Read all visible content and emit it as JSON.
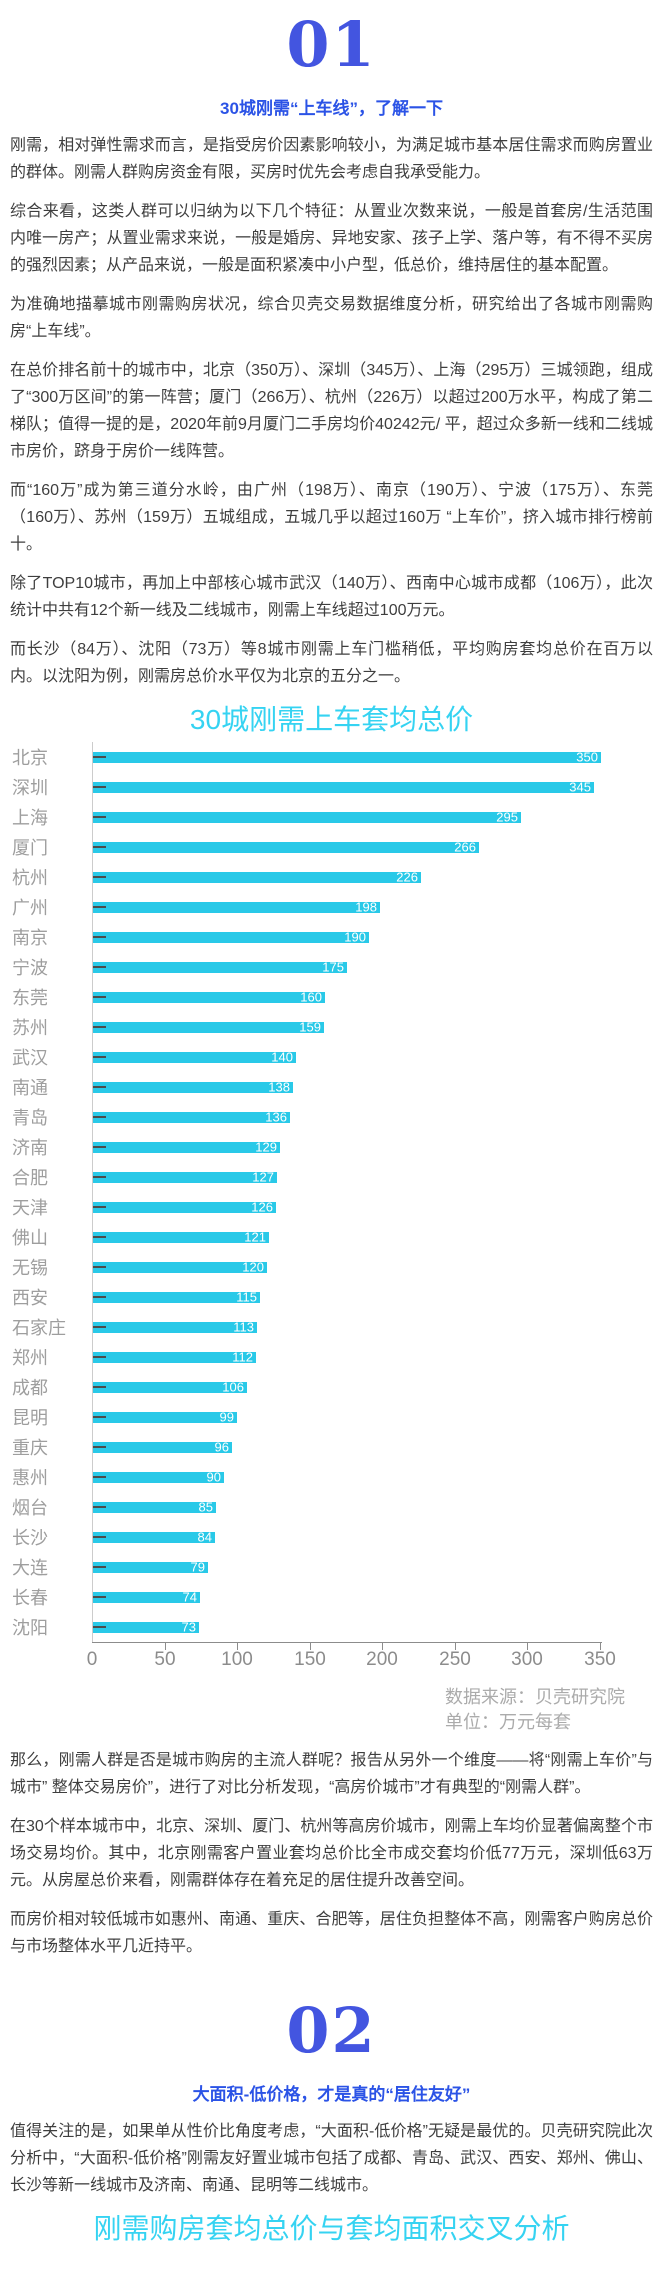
{
  "colors": {
    "section_number_blue": "#4355e0",
    "heading_blue": "#2b53e6",
    "cyan_title": "#35d3f2",
    "bar_cyan": "#29c9e8",
    "body_text": "#3e3e3e",
    "muted_gray": "#9e9e9e",
    "value_label_white": "#ffffff"
  },
  "section1": {
    "number": "01",
    "heading": "30城刚需“上车线”，了解一下",
    "paragraphs": [
      "刚需，相对弹性需求而言，是指受房价因素影响较小，为满足城市基本居住需求而购房置业的群体。刚需人群购房资金有限，买房时优先会考虑自我承受能力。",
      "综合来看，这类人群可以归纳为以下几个特征：从置业次数来说，一般是首套房/生活范围内唯一房产；从置业需求来说，一般是婚房、异地安家、孩子上学、落户等，有不得不买房的强烈因素；从产品来说，一般是面积紧凑中小户型，低总价，维持居住的基本配置。",
      "为准确地描摹城市刚需购房状况，综合贝壳交易数据维度分析，研究给出了各城市刚需购房“上车线”。",
      "在总价排名前十的城市中，北京（350万）、深圳（345万）、上海（295万）三城领跑，组成了“300万区间”的第一阵营；厦门（266万）、杭州（226万）以超过200万水平，构成了第二梯队；值得一提的是，2020年前9月厦门二手房均价40242元/ 平，超过众多新一线和二线城市房价，跻身于房价一线阵营。",
      "而“160万”成为第三道分水岭，由广州（198万）、南京（190万）、宁波（175万）、东莞（160万）、苏州（159万）五城组成，五城几乎以超过160万 “上车价”，挤入城市排行榜前十。",
      "除了TOP10城市，再加上中部核心城市武汉（140万）、西南中心城市成都（106万），此次统计中共有12个新一线及二线城市，刚需上车线超过100万元。",
      "而长沙（84万）、沈阳（73万）等8城市刚需上车门槛稍低，平均购房套均总价在百万以内。以沈阳为例，刚需房总价水平仅为北京的五分之一。"
    ]
  },
  "chart_data": {
    "type": "bar",
    "orientation": "horizontal",
    "title": "30城刚需上车套均总价",
    "categories": [
      "北京",
      "深圳",
      "上海",
      "厦门",
      "杭州",
      "广州",
      "南京",
      "宁波",
      "东莞",
      "苏州",
      "武汉",
      "南通",
      "青岛",
      "济南",
      "合肥",
      "天津",
      "佛山",
      "无锡",
      "西安",
      "石家庄",
      "郑州",
      "成都",
      "昆明",
      "重庆",
      "惠州",
      "烟台",
      "长沙",
      "大连",
      "长春",
      "沈阳"
    ],
    "values": [
      350,
      345,
      295,
      266,
      226,
      198,
      190,
      175,
      160,
      159,
      140,
      138,
      136,
      129,
      127,
      126,
      121,
      120,
      115,
      113,
      112,
      106,
      99,
      96,
      90,
      85,
      84,
      79,
      74,
      73
    ],
    "xlabel": "",
    "ylabel": "",
    "xlim": [
      0,
      350
    ],
    "x_ticks": [
      0,
      50,
      100,
      150,
      200,
      250,
      300,
      350
    ],
    "grid": false,
    "legend": "none",
    "value_labels": "inside-end-white",
    "bar_color": "#29c9e8",
    "source": "数据来源：贝壳研究院",
    "unit": "单位：万元每套"
  },
  "analysis": {
    "paragraphs": [
      "那么，刚需人群是否是城市购房的主流人群呢？报告从另外一个维度——将“刚需上车价”与城市” 整体交易房价”，进行了对比分析发现，“高房价城市”才有典型的“刚需人群”。",
      "在30个样本城市中，北京、深圳、厦门、杭州等高房价城市，刚需上车均价显著偏离整个市场交易均价。其中，北京刚需客户置业套均总价比全市成交套均价低77万元，深圳低63万元。从房屋总价来看，刚需群体存在着充足的居住提升改善空间。",
      "而房价相对较低城市如惠州、南通、重庆、合肥等，居住负担整体不高，刚需客户购房总价与市场整体水平几近持平。"
    ]
  },
  "section2": {
    "number": "02",
    "heading": "大面积-低价格，才是真的“居住友好”",
    "paragraphs": [
      "值得关注的是，如果单从性价比角度考虑，“大面积-低价格”无疑是最优的。贝壳研究院此次分析中，“大面积-低价格”刚需友好置业城市包括了成都、青岛、武汉、西安、郑州、佛山、长沙等新一线城市及济南、南通、昆明等二线城市。",
      ""
    ],
    "next_chart_title": "刚需购房套均总价与套均面积交叉分析"
  }
}
